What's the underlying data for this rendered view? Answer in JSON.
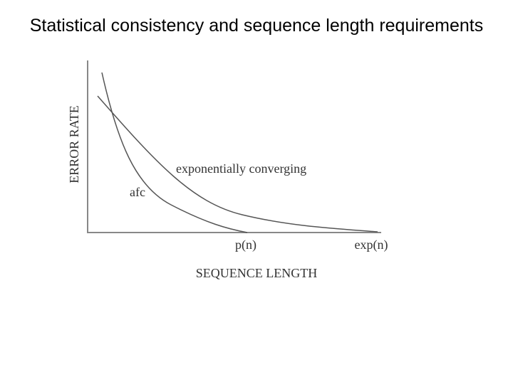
{
  "title": "Statistical consistency and sequence length requirements",
  "diagram": {
    "y_axis_label": "ERROR RATE",
    "x_axis_label": "SEQUENCE LENGTH",
    "curves": [
      {
        "label": "exponentially converging"
      },
      {
        "label": "afc"
      }
    ],
    "x_markers": [
      "p(n)",
      "exp(n)"
    ]
  }
}
